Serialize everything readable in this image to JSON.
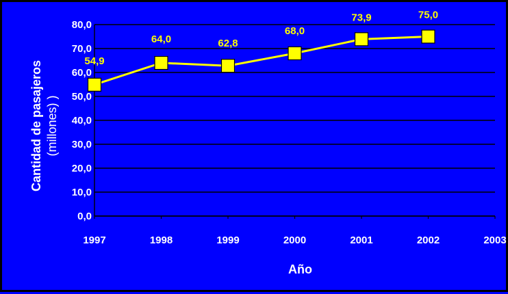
{
  "chart_data": {
    "type": "line",
    "title": "",
    "xlabel": "Año",
    "ylabel_main": "Cantidad de pasajeros",
    "ylabel_sub": "(millones) )",
    "x_ticks": [
      "1997",
      "1998",
      "1999",
      "2000",
      "2001",
      "2002",
      "2003"
    ],
    "y_ticks": [
      "0,0",
      "10,0",
      "20,0",
      "30,0",
      "40,0",
      "50,0",
      "60,0",
      "70,0",
      "80,0"
    ],
    "ylim": [
      0,
      80
    ],
    "grid": true,
    "series": [
      {
        "x": [
          "1997",
          "1998",
          "1999",
          "2000",
          "2001",
          "2002"
        ],
        "values": [
          54.9,
          64.0,
          62.8,
          68.0,
          73.9,
          75.0
        ],
        "labels": [
          "54,9",
          "64,0",
          "62,8",
          "68,0",
          "73,9",
          "75,0"
        ]
      }
    ],
    "colors": {
      "background": "#0000ff",
      "line": "#ffff00",
      "marker_fill": "#ffff00",
      "marker_edge": "#000000",
      "grid": "#000000",
      "axis_text": "#ffffff",
      "data_label": "#ffff00"
    }
  }
}
